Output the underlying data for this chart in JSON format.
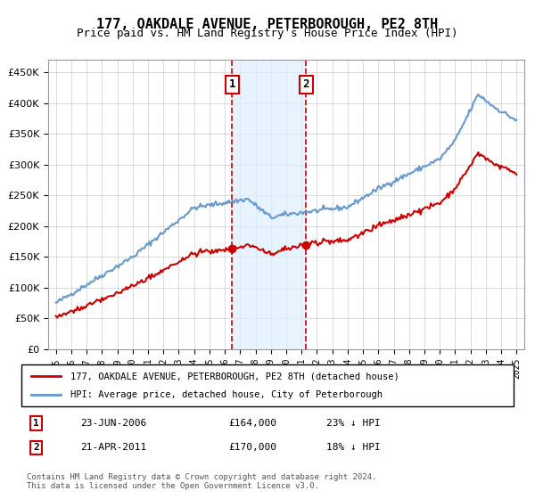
{
  "title": "177, OAKDALE AVENUE, PETERBOROUGH, PE2 8TH",
  "subtitle": "Price paid vs. HM Land Registry's House Price Index (HPI)",
  "legend_line1": "177, OAKDALE AVENUE, PETERBOROUGH, PE2 8TH (detached house)",
  "legend_line2": "HPI: Average price, detached house, City of Peterborough",
  "footnote": "Contains HM Land Registry data © Crown copyright and database right 2024.\nThis data is licensed under the Open Government Licence v3.0.",
  "transaction1_label": "1",
  "transaction1_date": "23-JUN-2006",
  "transaction1_price": "£164,000",
  "transaction1_pct": "23% ↓ HPI",
  "transaction2_label": "2",
  "transaction2_date": "21-APR-2011",
  "transaction2_price": "£170,000",
  "transaction2_pct": "18% ↓ HPI",
  "sale1_year": 2006.47,
  "sale1_price": 164000,
  "sale2_year": 2011.3,
  "sale2_price": 170000,
  "hpi_color": "#6699cc",
  "price_color": "#cc0000",
  "shade_color": "#ddeeff",
  "vline_color": "#cc0000",
  "box_color": "#cc0000",
  "ylim": [
    0,
    470000
  ],
  "yticks": [
    0,
    50000,
    100000,
    150000,
    200000,
    250000,
    300000,
    350000,
    400000,
    450000
  ],
  "xlim_start": 1994.5,
  "xlim_end": 2025.5
}
